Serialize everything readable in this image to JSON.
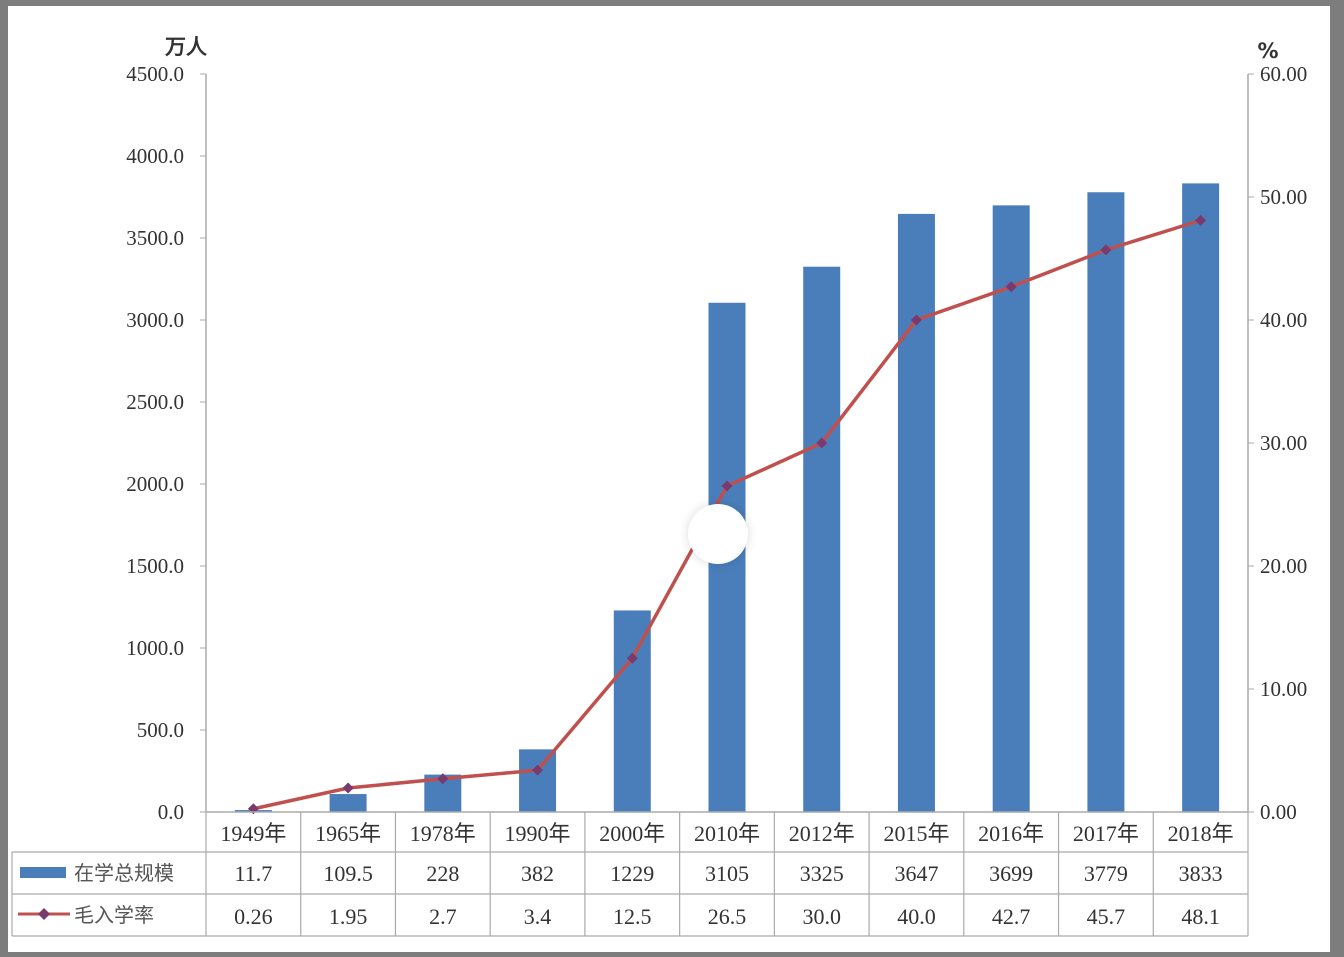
{
  "chart_data": {
    "type": "bar",
    "categories": [
      "1949年",
      "1965年",
      "1978年",
      "1990年",
      "2000年",
      "2010年",
      "2012年",
      "2015年",
      "2016年",
      "2017年",
      "2018年"
    ],
    "series": [
      {
        "name": "在学总规模",
        "type": "bar",
        "axis": "left",
        "color": "#4a7ebb",
        "values": [
          11.7,
          109.5,
          228,
          382,
          1229,
          3105,
          3325,
          3647,
          3699,
          3779,
          3833
        ]
      },
      {
        "name": "毛入学率",
        "type": "line",
        "axis": "right",
        "color": "#c0504d",
        "marker_color": "#7a3a6e",
        "values": [
          0.26,
          1.95,
          2.7,
          3.4,
          12.5,
          26.5,
          30.0,
          40.0,
          42.7,
          45.7,
          48.1
        ]
      }
    ],
    "table": {
      "row1_labels": [
        "11.7",
        "109.5",
        "228",
        "382",
        "1229",
        "3105",
        "3325",
        "3647",
        "3699",
        "3779",
        "3833"
      ],
      "row2_labels": [
        "0.26",
        "1.95",
        "2.7",
        "3.4",
        "12.5",
        "26.5",
        "30.0",
        "40.0",
        "42.7",
        "45.7",
        "48.1"
      ]
    },
    "y_left": {
      "unit": "万人",
      "range": [
        0,
        4500
      ],
      "ticks": [
        "0.0",
        "500.0",
        "1000.0",
        "1500.0",
        "2000.0",
        "2500.0",
        "3000.0",
        "3500.0",
        "4000.0",
        "4500.0"
      ]
    },
    "y_right": {
      "unit": "%",
      "range": [
        0,
        60
      ],
      "ticks": [
        "0.00",
        "10.00",
        "20.00",
        "30.00",
        "40.00",
        "50.00",
        "60.00"
      ]
    },
    "grid": false,
    "legend": "data-table"
  }
}
